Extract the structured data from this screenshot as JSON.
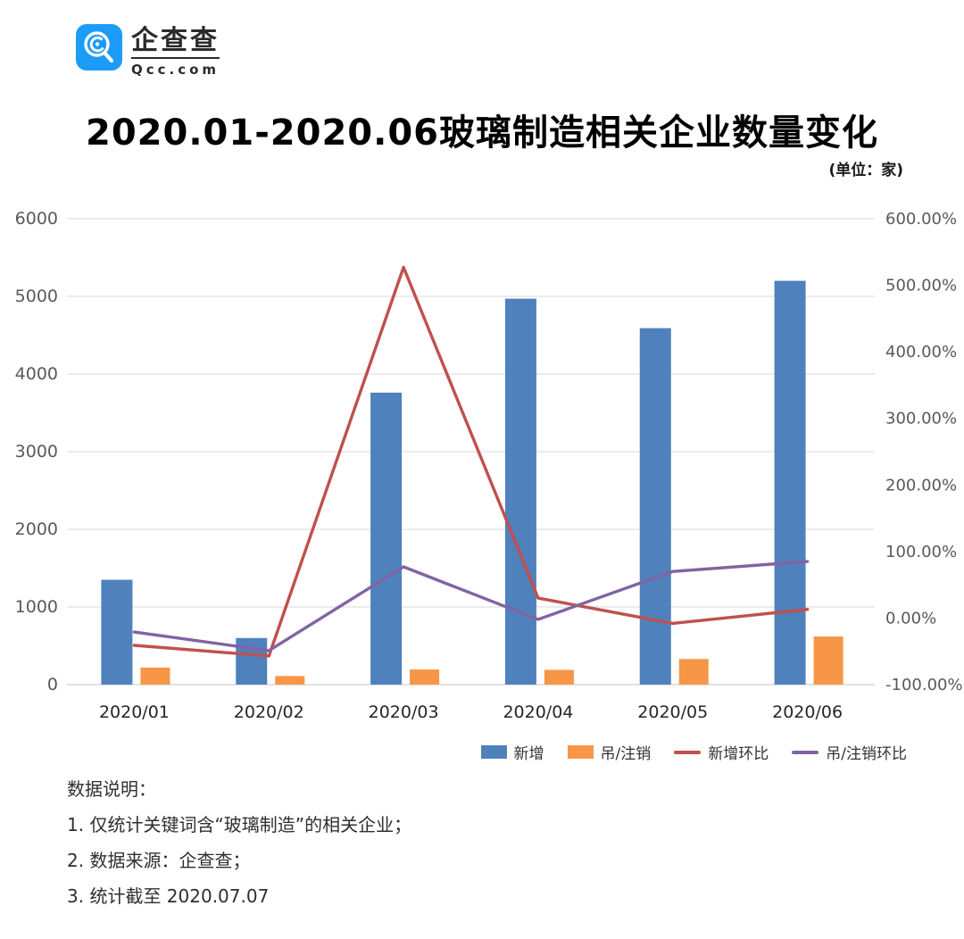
{
  "brand": {
    "name": "企查查",
    "domain": "Qcc.com"
  },
  "title": "2020.01-2020.06玻璃制造相关企业数量变化",
  "unit_label": "(单位：家)",
  "chart_data": {
    "type": "bar+line combo",
    "categories": [
      "2020/01",
      "2020/02",
      "2020/03",
      "2020/04",
      "2020/05",
      "2020/06"
    ],
    "series": [
      {
        "name": "新增",
        "type": "bar",
        "axis": "left",
        "color": "#4F81BD",
        "values": [
          1350,
          600,
          3760,
          4970,
          4590,
          5200
        ]
      },
      {
        "name": "吊/注销",
        "type": "bar",
        "axis": "left",
        "color": "#F79646",
        "values": [
          220,
          110,
          195,
          190,
          330,
          620
        ]
      },
      {
        "name": "新增环比",
        "type": "line",
        "axis": "right",
        "color": "#C0504D",
        "values": [
          -41,
          -57,
          527,
          30,
          -8,
          13
        ]
      },
      {
        "name": "吊/注销环比",
        "type": "line",
        "axis": "right",
        "color": "#8064A2",
        "values": [
          -21,
          -49,
          77,
          -2,
          70,
          85
        ]
      }
    ],
    "left_axis": {
      "min": 0,
      "max": 6000,
      "step": 1000,
      "ticks": [
        "0",
        "1000",
        "2000",
        "3000",
        "4000",
        "5000",
        "6000"
      ]
    },
    "right_axis": {
      "min": -100,
      "max": 600,
      "step": 100,
      "ticks": [
        "-100.00%",
        "0.00%",
        "100.00%",
        "200.00%",
        "300.00%",
        "400.00%",
        "500.00%",
        "600.00%"
      ]
    },
    "grid": true,
    "legend_position": "bottom-right",
    "colors": {
      "grid": "#d9d9d9",
      "axis_line": "#c6c6c6",
      "tick_label": "#595959",
      "category_label": "#262626"
    }
  },
  "notes": {
    "heading": "数据说明：",
    "items": [
      "1. 仅统计关键词含“玻璃制造”的相关企业；",
      "2. 数据来源：企查查；",
      "3. 统计截至 2020.07.07"
    ]
  }
}
